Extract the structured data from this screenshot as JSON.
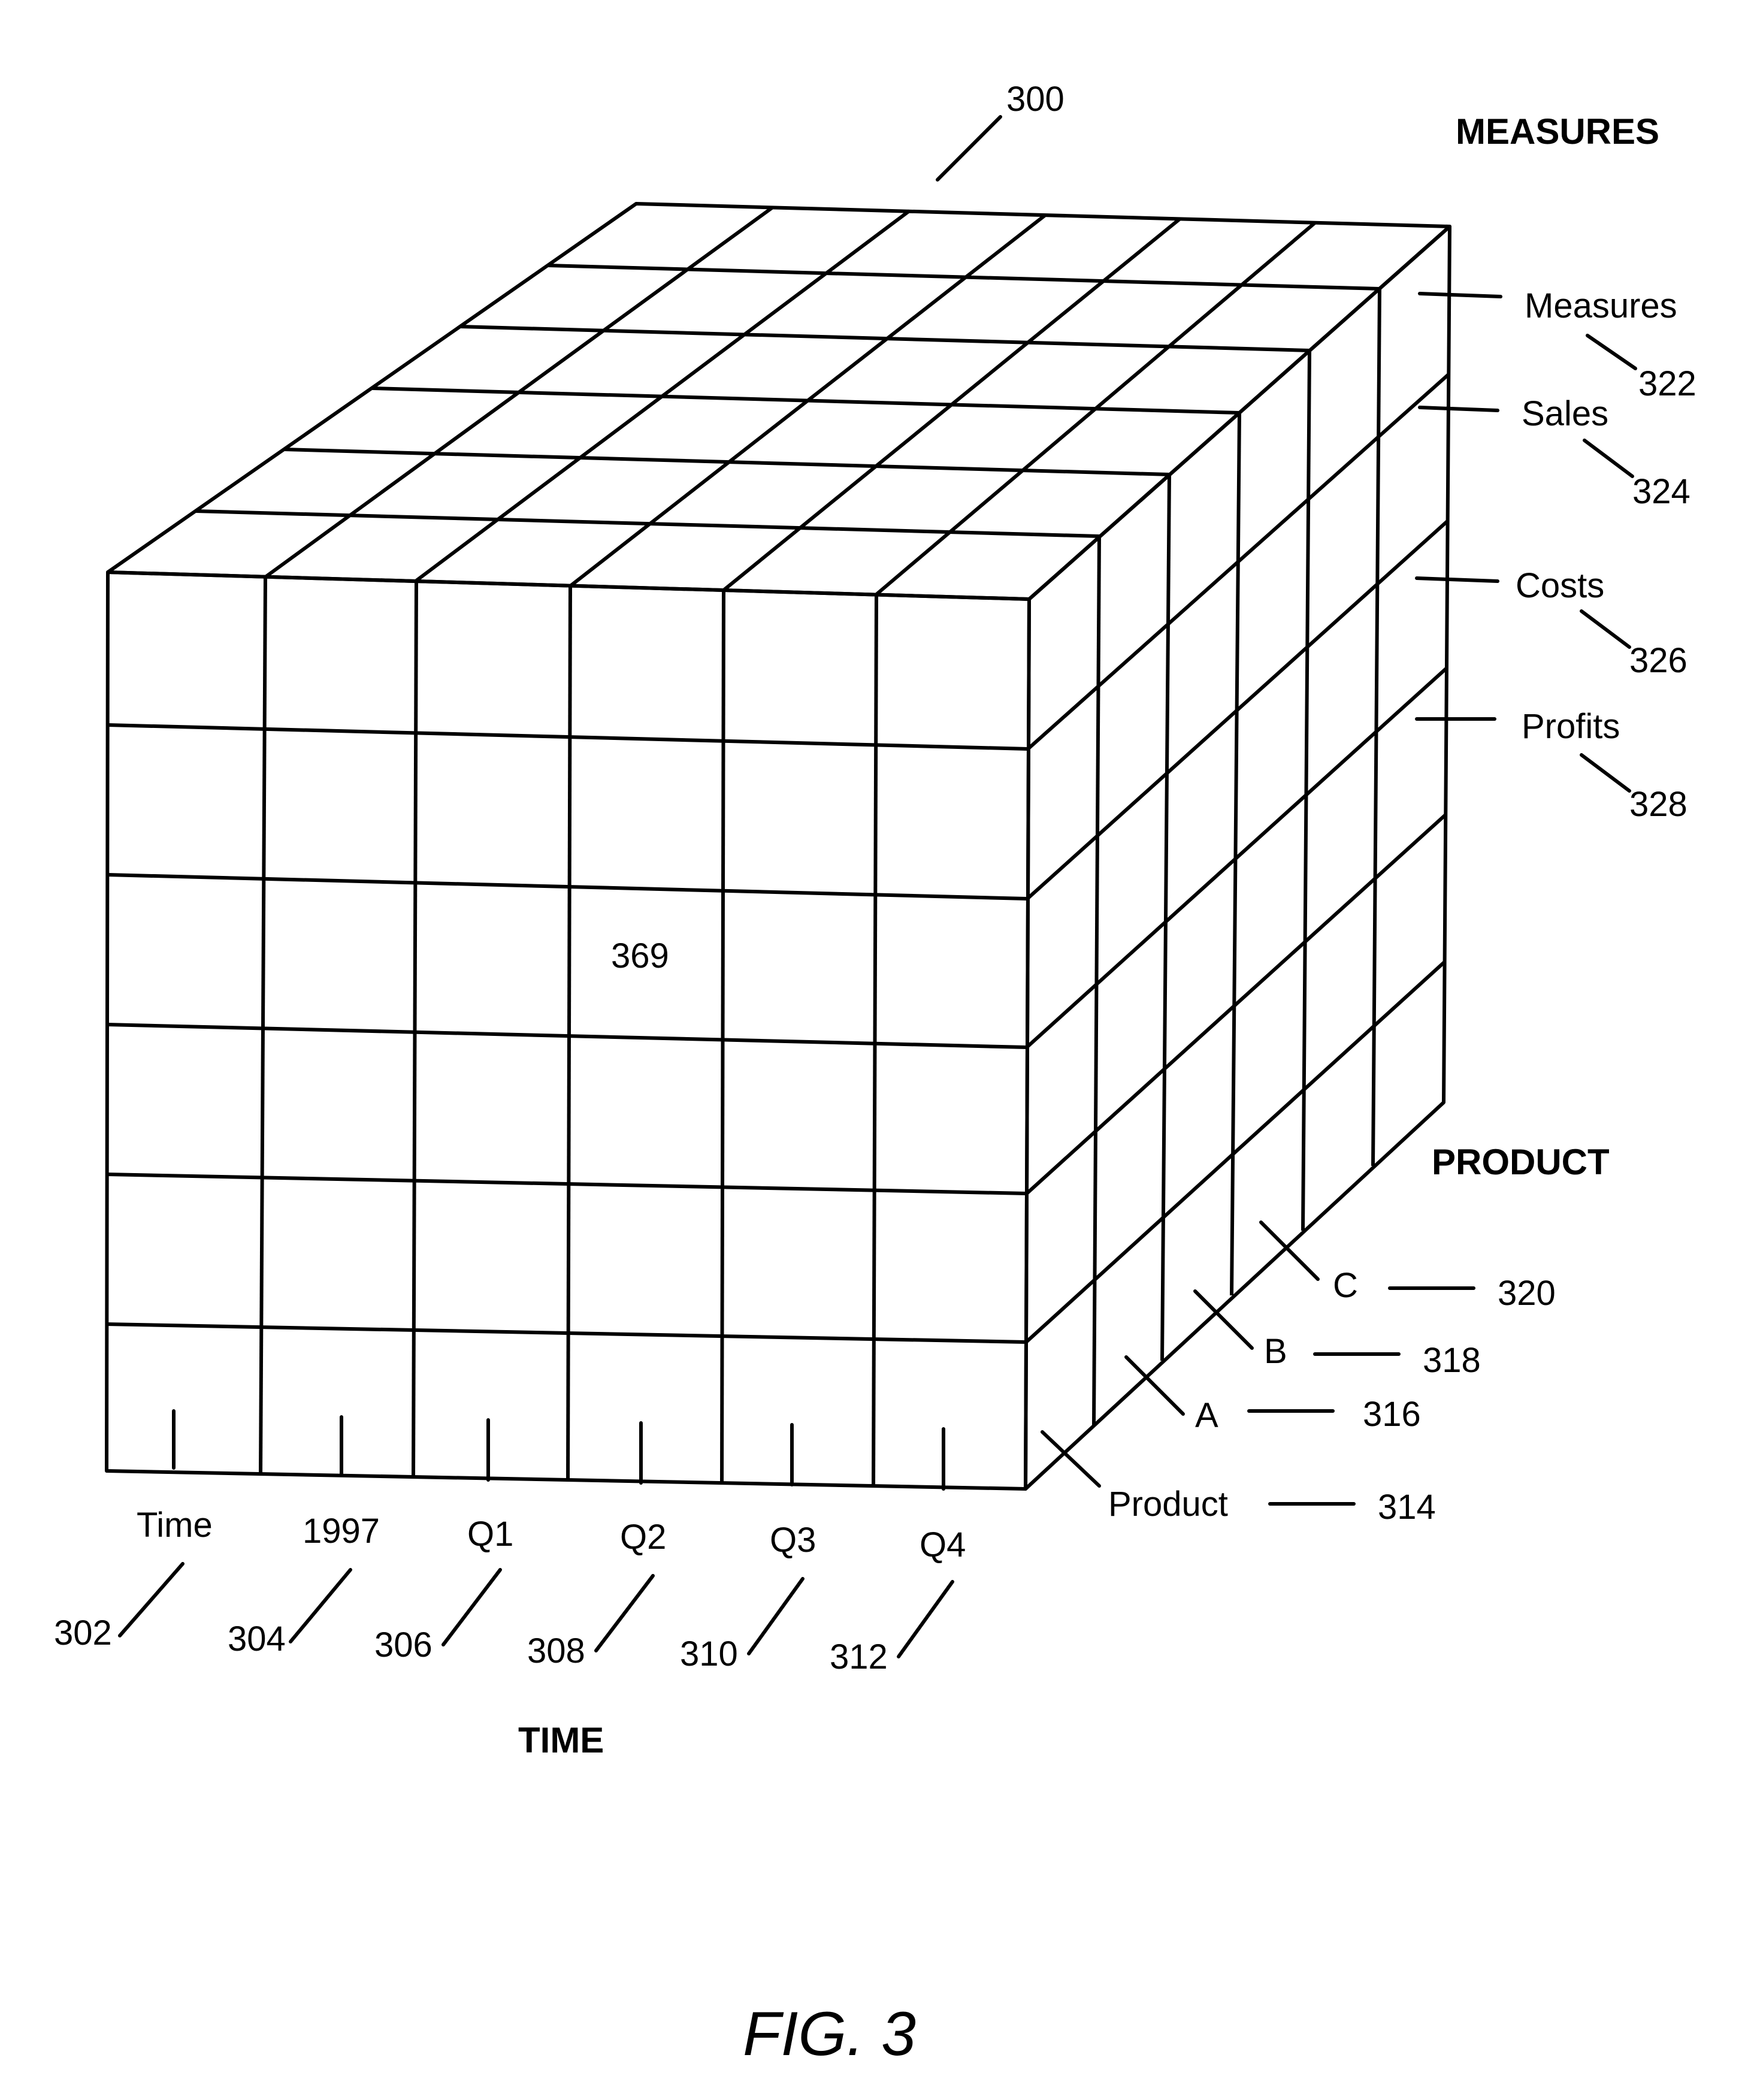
{
  "figure": {
    "caption": "FIG. 3",
    "cube_ref": "300",
    "cell_ref": "369"
  },
  "axes": {
    "time": "TIME",
    "product": "PRODUCT",
    "measures": "MEASURES"
  },
  "time_members": [
    {
      "label": "Time",
      "ref": "302"
    },
    {
      "label": "1997",
      "ref": "304"
    },
    {
      "label": "Q1",
      "ref": "306"
    },
    {
      "label": "Q2",
      "ref": "308"
    },
    {
      "label": "Q3",
      "ref": "310"
    },
    {
      "label": "Q4",
      "ref": "312"
    }
  ],
  "product_members": [
    {
      "label": "Product",
      "ref": "314"
    },
    {
      "label": "A",
      "ref": "316"
    },
    {
      "label": "B",
      "ref": "318"
    },
    {
      "label": "C",
      "ref": "320"
    }
  ],
  "measure_members": [
    {
      "label": "Measures",
      "ref": "322"
    },
    {
      "label": "Sales",
      "ref": "324"
    },
    {
      "label": "Costs",
      "ref": "326"
    },
    {
      "label": "Profits",
      "ref": "328"
    }
  ]
}
